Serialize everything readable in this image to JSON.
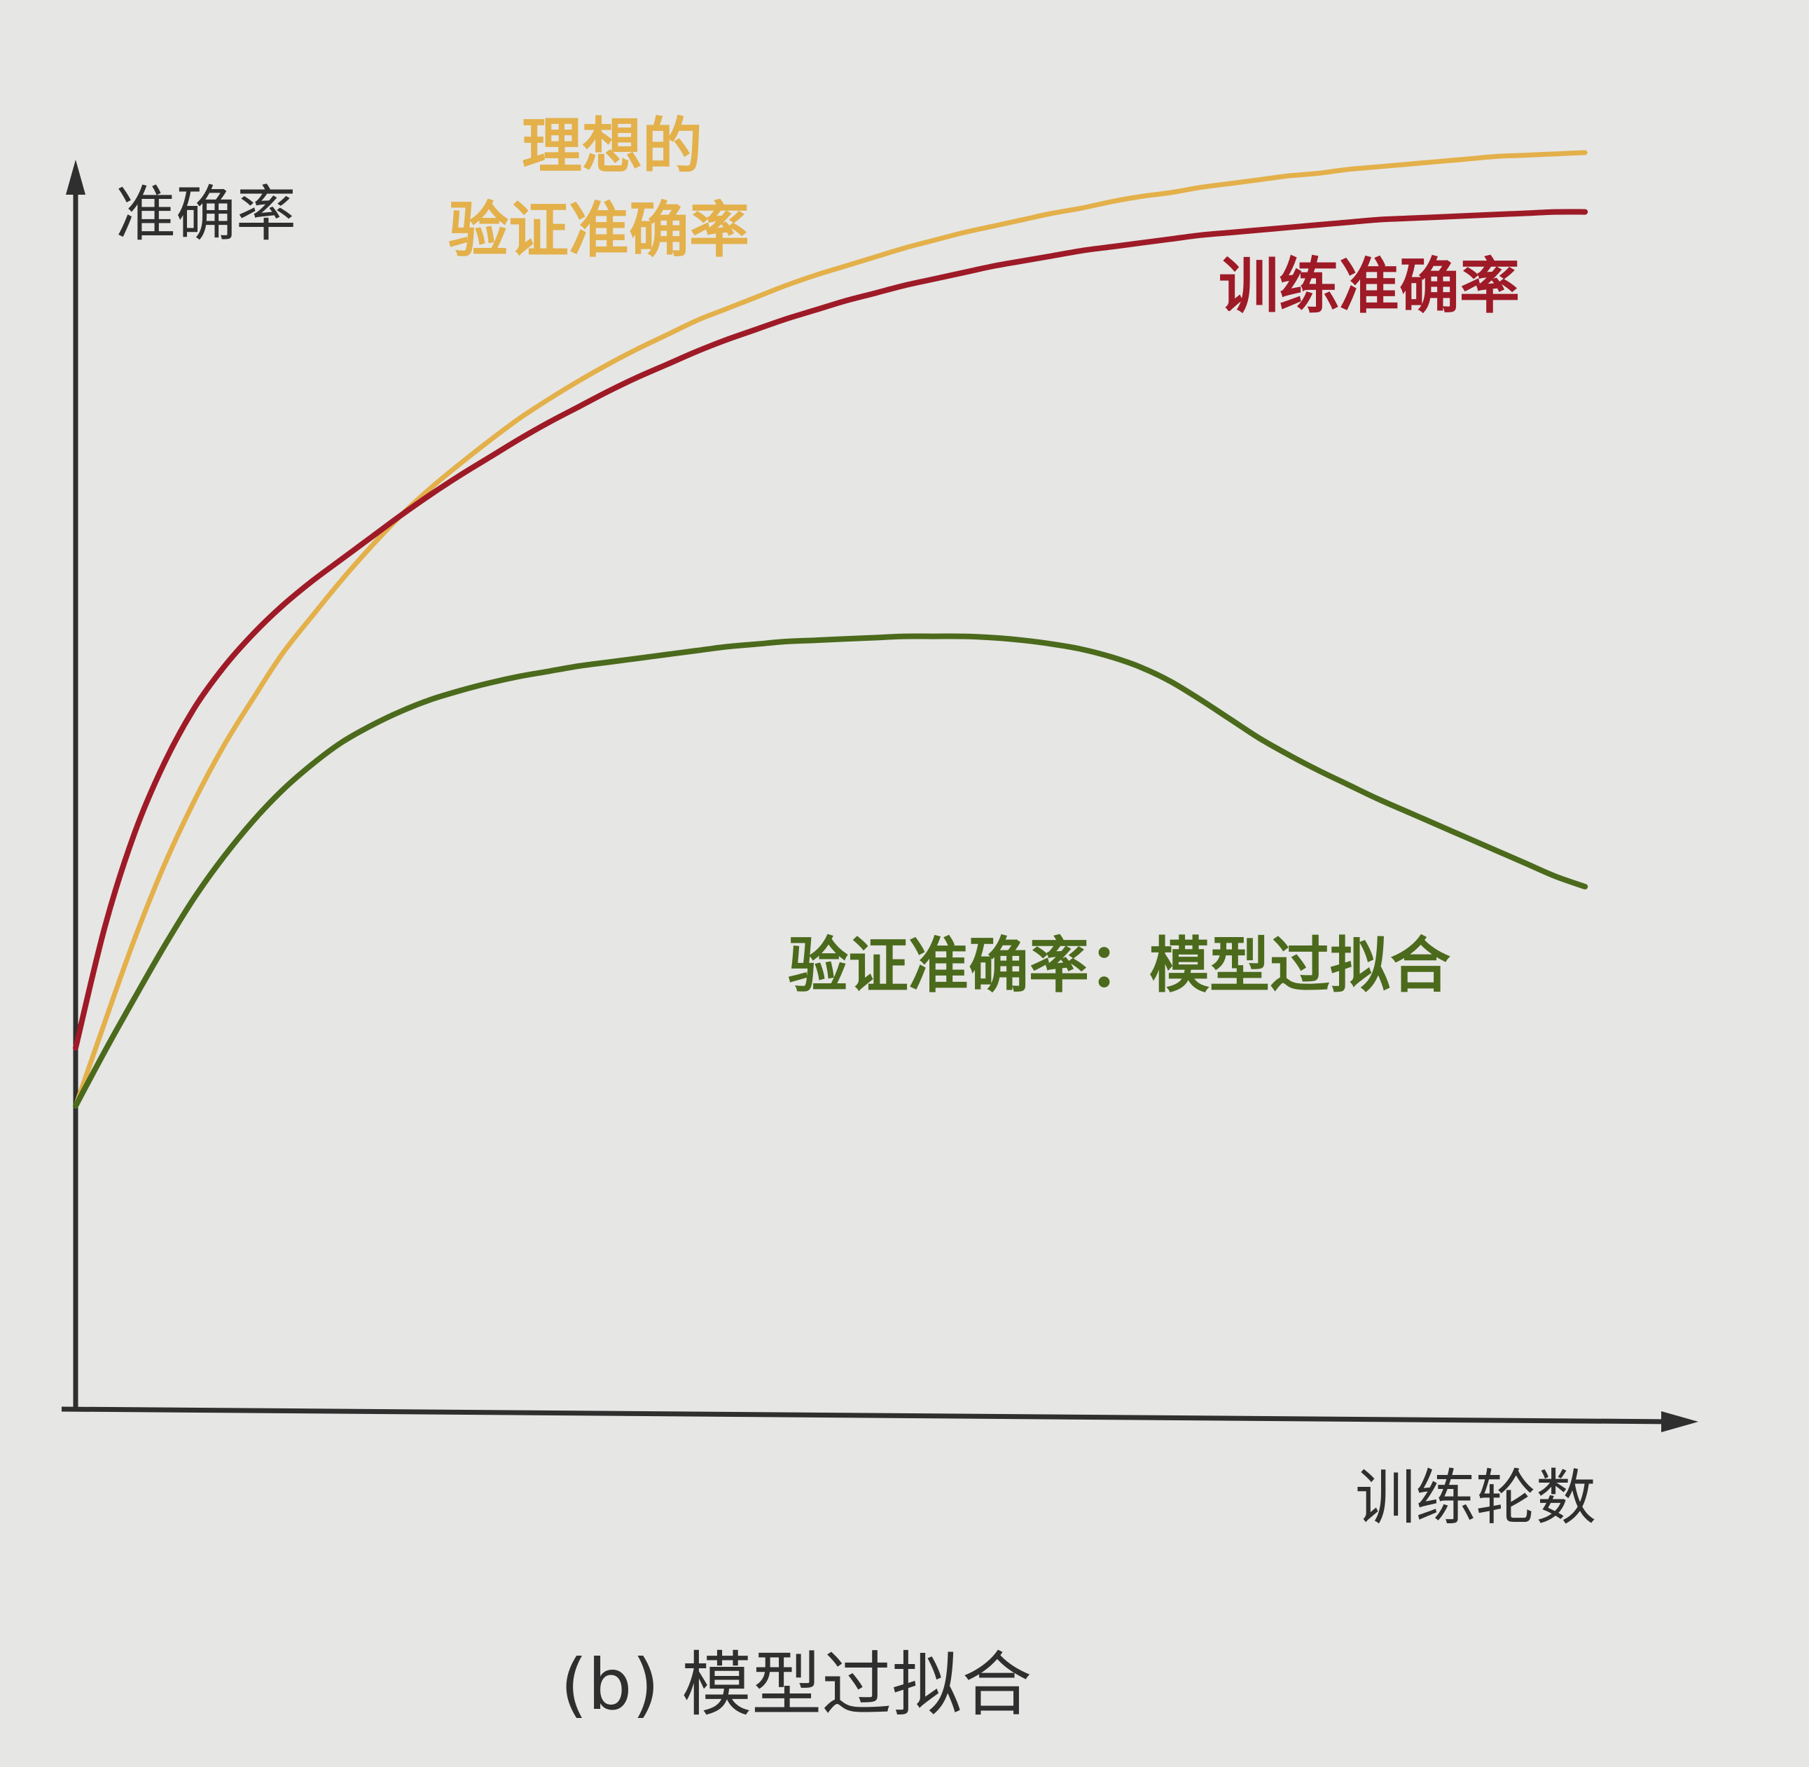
{
  "chart_data": {
    "type": "line",
    "title": "",
    "caption": "(b) 模型过拟合",
    "xlabel": "训练轮数",
    "ylabel": "准确率",
    "x": [
      0,
      0.5,
      1,
      1.5,
      2,
      2.5,
      3,
      3.5,
      4,
      4.5,
      5,
      5.5,
      6,
      6.5,
      7,
      7.5,
      8,
      8.5,
      9,
      9.5,
      10,
      10.5,
      11,
      11.5,
      12,
      12.5,
      13,
      13.5,
      14,
      14.5,
      15,
      15.5,
      16,
      16.5,
      17,
      17.5,
      18,
      18.5,
      19,
      19.5,
      20,
      20.5,
      21,
      21.5,
      22,
      22.5,
      23,
      23.5,
      24,
      24.5,
      25,
      25.5
    ],
    "xlim": [
      0,
      27
    ],
    "ylim": [
      0,
      100
    ],
    "grid": false,
    "legend": "none",
    "series": [
      {
        "name": "理想的验证准确率",
        "color": "#e3b04a",
        "values": [
          23.5,
          30.1,
          36.5,
          42.2,
          47.1,
          51.4,
          55.1,
          58.6,
          61.5,
          64.3,
          66.9,
          69.3,
          71.4,
          73.3,
          75.1,
          76.8,
          78.3,
          79.7,
          81.0,
          82.2,
          83.3,
          84.4,
          85.3,
          86.2,
          87.1,
          87.9,
          88.6,
          89.3,
          90.0,
          90.6,
          91.2,
          91.7,
          92.2,
          92.7,
          93.1,
          93.6,
          94.0,
          94.3,
          94.7,
          95.0,
          95.3,
          95.6,
          95.8,
          96.1,
          96.3,
          96.5,
          96.7,
          96.9,
          97.1,
          97.2,
          97.3,
          97.4
        ]
      },
      {
        "name": "训练准确率",
        "color": "#9e1a27",
        "values": [
          28.0,
          37.5,
          44.7,
          50.1,
          54.3,
          57.5,
          60.1,
          62.3,
          64.2,
          65.9,
          67.6,
          69.3,
          70.9,
          72.4,
          73.8,
          75.2,
          76.5,
          77.7,
          78.9,
          80.0,
          81.0,
          82.0,
          82.9,
          83.7,
          84.5,
          85.2,
          85.9,
          86.5,
          87.1,
          87.6,
          88.1,
          88.6,
          89.0,
          89.4,
          89.8,
          90.1,
          90.4,
          90.7,
          91.0,
          91.2,
          91.4,
          91.6,
          91.8,
          92.0,
          92.2,
          92.3,
          92.4,
          92.5,
          92.6,
          92.7,
          92.8,
          92.8
        ]
      },
      {
        "name": "验证准确率：模型过拟合",
        "color": "#4b6a1c",
        "values": [
          23.5,
          27.8,
          31.9,
          35.9,
          39.6,
          42.8,
          45.6,
          48.0,
          50.0,
          51.7,
          53.0,
          54.1,
          55.0,
          55.7,
          56.3,
          56.8,
          57.2,
          57.6,
          57.9,
          58.2,
          58.5,
          58.8,
          59.1,
          59.3,
          59.5,
          59.6,
          59.7,
          59.8,
          59.9,
          59.9,
          59.9,
          59.8,
          59.6,
          59.3,
          58.9,
          58.3,
          57.5,
          56.4,
          55.0,
          53.5,
          52.0,
          50.7,
          49.5,
          48.4,
          47.3,
          46.3,
          45.3,
          44.3,
          43.3,
          42.3,
          41.3,
          40.5
        ]
      }
    ]
  }
}
